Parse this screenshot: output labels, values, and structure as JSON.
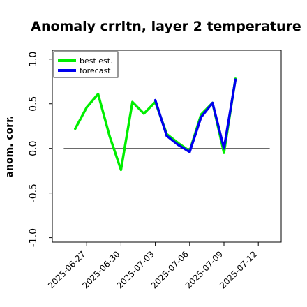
{
  "chart_data": {
    "type": "line",
    "title": "Anomaly crrltn, layer 2 temperature",
    "ylabel": "anom. corr.",
    "xlabel": "",
    "ylim": [
      -1.05,
      1.1
    ],
    "yticks": [
      -1.0,
      -0.5,
      0.0,
      0.5,
      1.0
    ],
    "ytick_labels": [
      "-1.0",
      "-0.5",
      "0.0",
      "0.5",
      "1.0"
    ],
    "xlim": [
      "2025-06-24",
      "2025-07-14"
    ],
    "xticks": [
      "2025-06-27",
      "2025-06-30",
      "2025-07-03",
      "2025-07-06",
      "2025-07-09",
      "2025-07-12"
    ],
    "xtick_labels": [
      "2025-06-27",
      "2025-06-30",
      "2025-07-03",
      "2025-07-06",
      "2025-07-09",
      "2025-07-12"
    ],
    "highlighted_xtick": "2025-07-03",
    "highlight_color": "#2a9a2a",
    "reference_line": {
      "y": 0.0,
      "x_start": "2025-06-25",
      "x_end": "2025-07-13",
      "color": "#555555"
    },
    "legend": {
      "placement": "top-left"
    },
    "series": [
      {
        "name": "best est.",
        "color": "#00ee00",
        "x": [
          "2025-06-26",
          "2025-06-27",
          "2025-06-28",
          "2025-06-29",
          "2025-06-30",
          "2025-07-01",
          "2025-07-02",
          "2025-07-03",
          "2025-07-04",
          "2025-07-05",
          "2025-07-06",
          "2025-07-07",
          "2025-07-08",
          "2025-07-09",
          "2025-07-10"
        ],
        "values": [
          0.22,
          0.46,
          0.61,
          0.14,
          -0.24,
          0.52,
          0.39,
          0.52,
          0.16,
          0.06,
          -0.03,
          0.38,
          0.51,
          -0.05,
          0.78
        ]
      },
      {
        "name": "forecast",
        "color": "#0000ee",
        "x": [
          "2025-07-03",
          "2025-07-04",
          "2025-07-05",
          "2025-07-06",
          "2025-07-07",
          "2025-07-08",
          "2025-07-09",
          "2025-07-10"
        ],
        "values": [
          0.54,
          0.14,
          0.04,
          -0.04,
          0.35,
          0.51,
          0.0,
          0.77
        ]
      }
    ]
  }
}
